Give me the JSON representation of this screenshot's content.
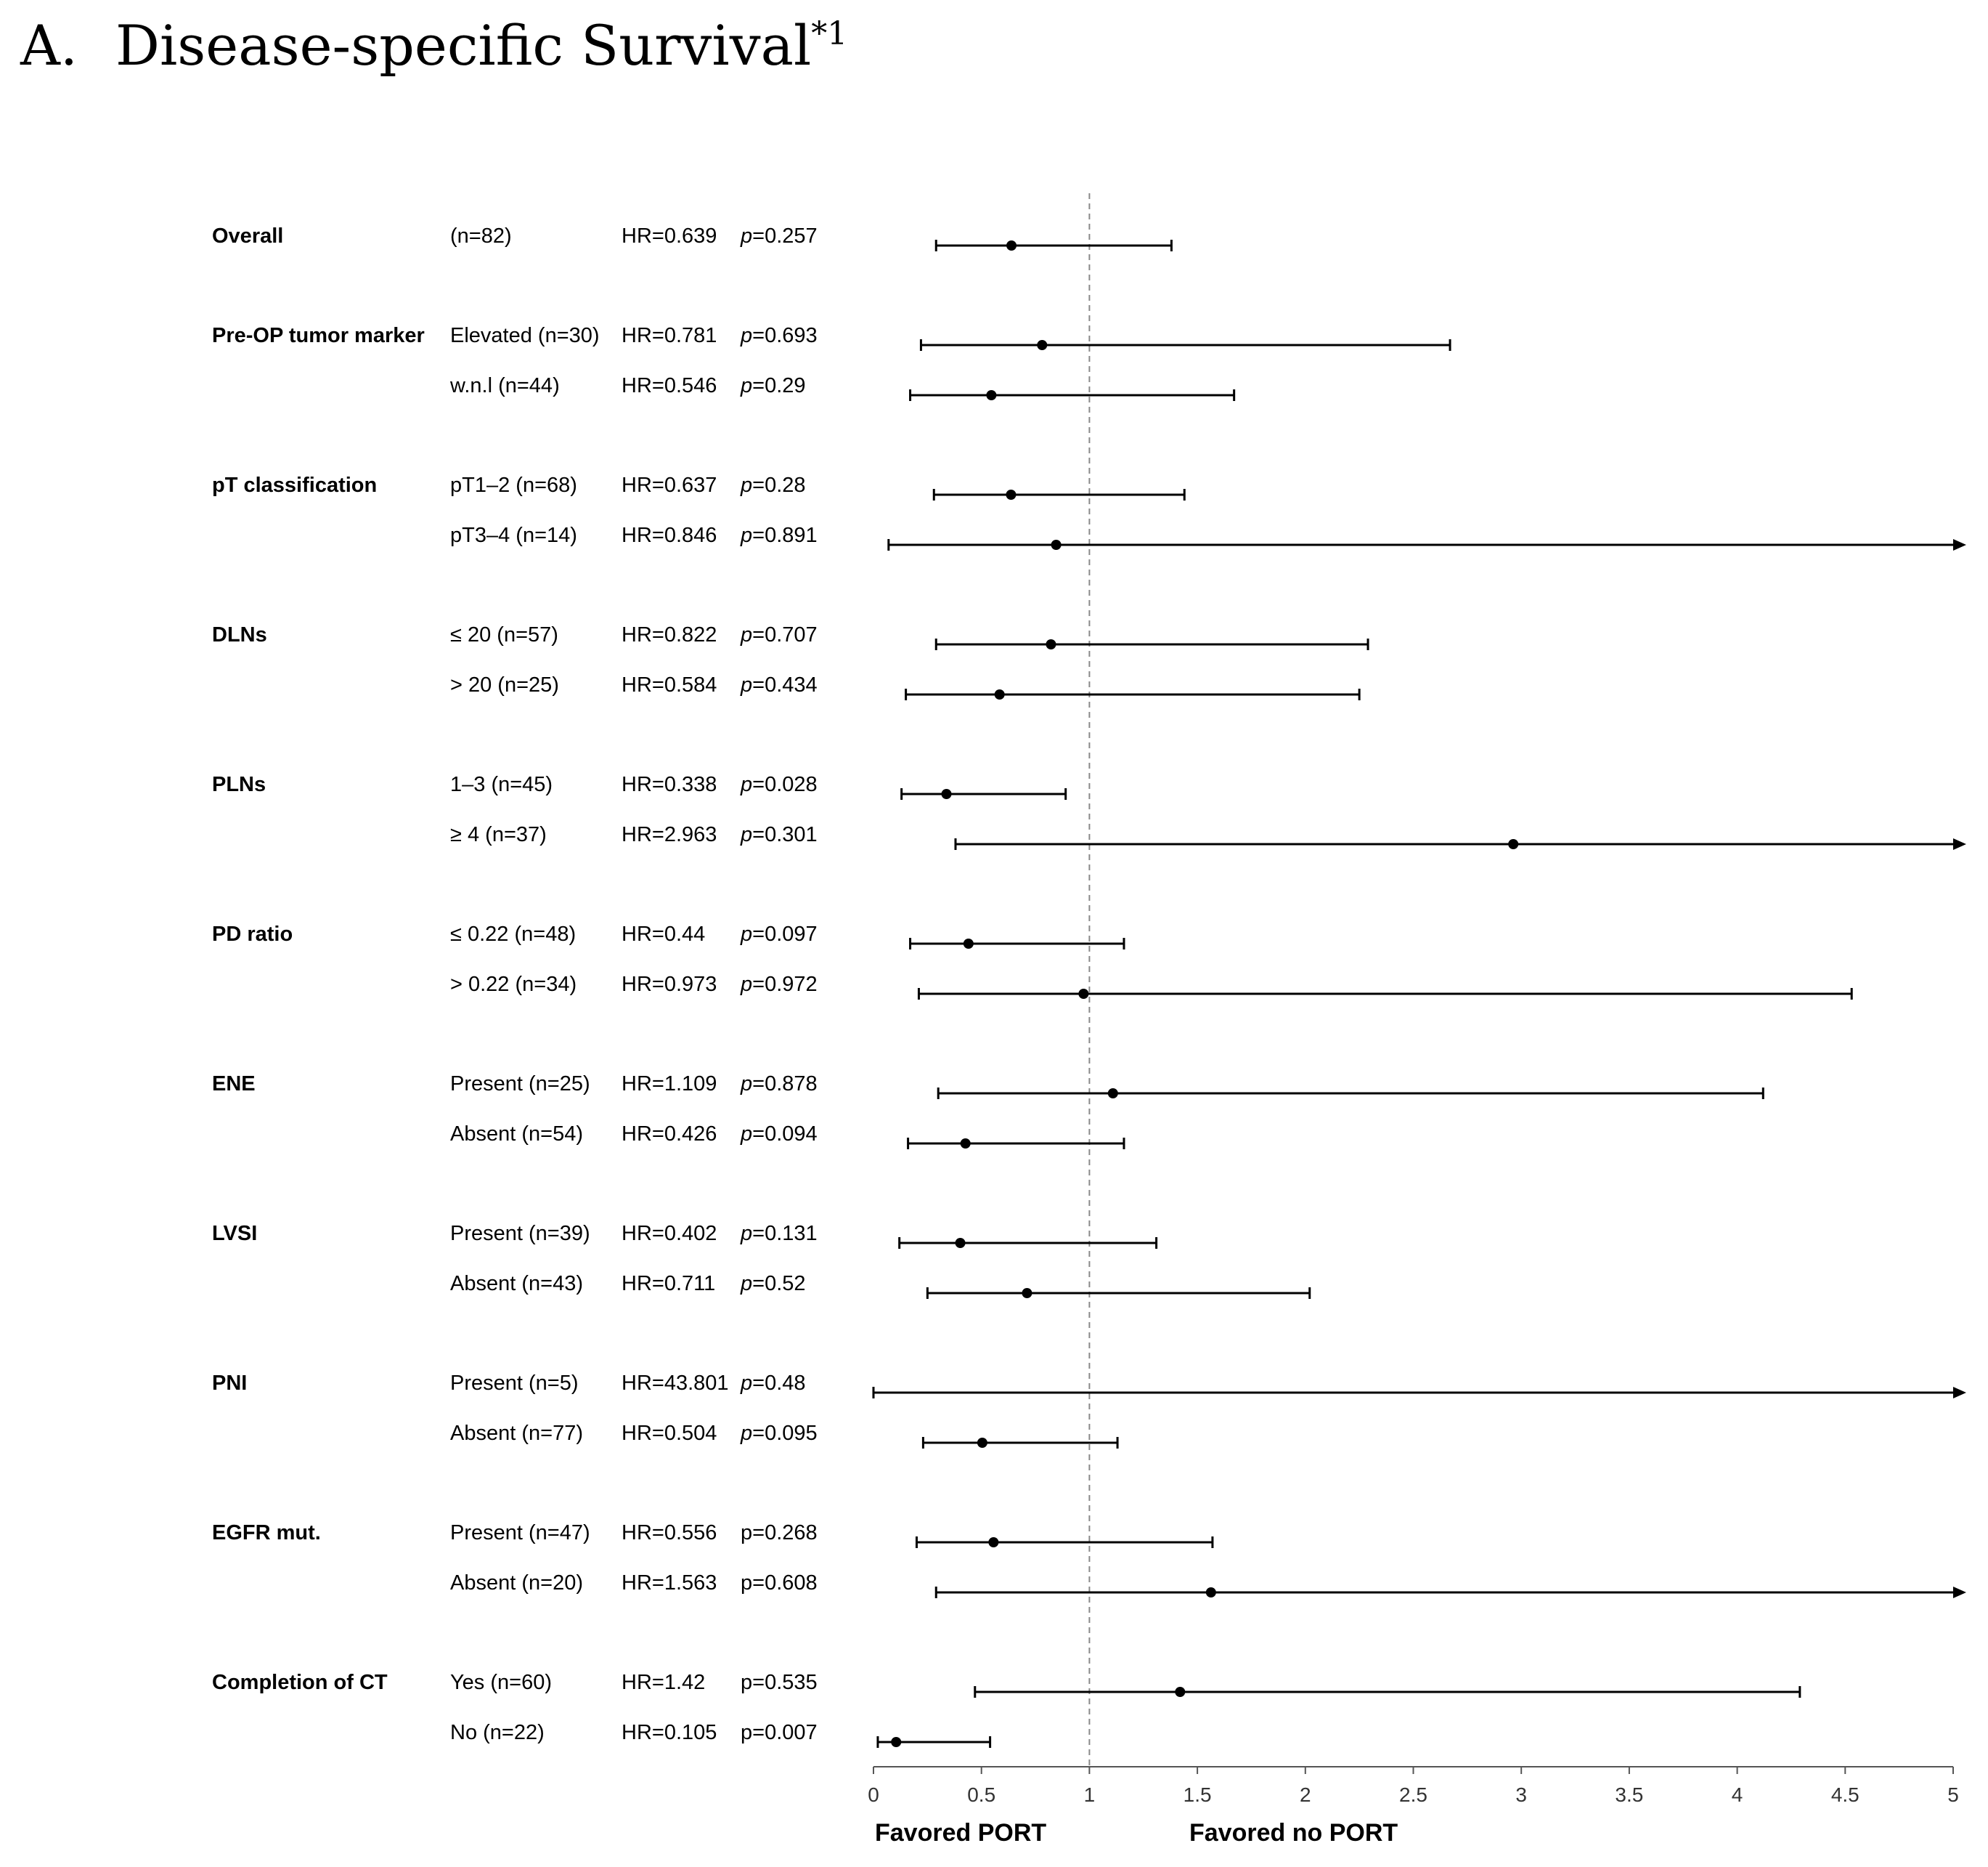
{
  "title": {
    "label": "A.",
    "text": "Disease-specific Survival",
    "superscript": "*1"
  },
  "chart_data": {
    "type": "forest",
    "xlim": [
      0,
      5
    ],
    "xticks": [
      0,
      0.5,
      1,
      1.5,
      2,
      2.5,
      3,
      3.5,
      4,
      4.5,
      5
    ],
    "tick_labels": [
      "0",
      "0.5",
      "1",
      "1.5",
      "2",
      "2.5",
      "3",
      "3.5",
      "4",
      "4.5",
      "5"
    ],
    "reference_line": 1,
    "xlabel_left": "Favored  PORT",
    "xlabel_right": "Favored no PORT",
    "groups": [
      {
        "name": "Overall",
        "rows": [
          {
            "subgroup": "(n=82)",
            "hr_text": "HR=0.639",
            "p_prefix": "p",
            "p_text": "=0.257",
            "p_italic": true,
            "hr": 0.639,
            "lo": 0.29,
            "hi": 1.38,
            "arrow": false
          }
        ]
      },
      {
        "name": "Pre-OP tumor marker",
        "rows": [
          {
            "subgroup": "Elevated (n=30)",
            "hr_text": "HR=0.781",
            "p_prefix": "p",
            "p_text": "=0.693",
            "p_italic": true,
            "hr": 0.781,
            "lo": 0.22,
            "hi": 2.67,
            "arrow": false
          },
          {
            "subgroup": "w.n.l (n=44)",
            "hr_text": "HR=0.546",
            "p_prefix": "p",
            "p_text": "=0.29",
            "p_italic": true,
            "hr": 0.546,
            "lo": 0.17,
            "hi": 1.67,
            "arrow": false
          }
        ]
      },
      {
        "name": "pT classification",
        "rows": [
          {
            "subgroup": "pT1–2 (n=68)",
            "hr_text": "HR=0.637",
            "p_prefix": "p",
            "p_text": "=0.28",
            "p_italic": true,
            "hr": 0.637,
            "lo": 0.28,
            "hi": 1.44,
            "arrow": false
          },
          {
            "subgroup": "pT3–4 (n=14)",
            "hr_text": "HR=0.846",
            "p_prefix": "p",
            "p_text": "=0.891",
            "p_italic": true,
            "hr": 0.846,
            "lo": 0.07,
            "hi": 5,
            "arrow": true
          }
        ]
      },
      {
        "name": "DLNs",
        "rows": [
          {
            "subgroup": "≤ 20 (n=57)",
            "hr_text": "HR=0.822",
            "p_prefix": "p",
            "p_text": "=0.707",
            "p_italic": true,
            "hr": 0.822,
            "lo": 0.29,
            "hi": 2.29,
            "arrow": false
          },
          {
            "subgroup": "> 20 (n=25)",
            "hr_text": "HR=0.584",
            "p_prefix": "p",
            "p_text": "=0.434",
            "p_italic": true,
            "hr": 0.584,
            "lo": 0.15,
            "hi": 2.25,
            "arrow": false
          }
        ]
      },
      {
        "name": "PLNs",
        "rows": [
          {
            "subgroup": "1–3 (n=45)",
            "hr_text": "HR=0.338",
            "p_prefix": "p",
            "p_text": "=0.028",
            "p_italic": true,
            "hr": 0.338,
            "lo": 0.13,
            "hi": 0.89,
            "arrow": false
          },
          {
            "subgroup": "≥ 4 (n=37)",
            "hr_text": "HR=2.963",
            "p_prefix": "p",
            "p_text": "=0.301",
            "p_italic": true,
            "hr": 2.963,
            "lo": 0.38,
            "hi": 5,
            "arrow": true
          }
        ]
      },
      {
        "name": "PD ratio",
        "rows": [
          {
            "subgroup": "≤ 0.22 (n=48)",
            "hr_text": "HR=0.44",
            "p_prefix": "p",
            "p_text": "=0.097",
            "p_italic": true,
            "hr": 0.44,
            "lo": 0.17,
            "hi": 1.16,
            "arrow": false
          },
          {
            "subgroup": "> 0.22 (n=34)",
            "hr_text": "HR=0.973",
            "p_prefix": "p",
            "p_text": "=0.972",
            "p_italic": true,
            "hr": 0.973,
            "lo": 0.21,
            "hi": 4.53,
            "arrow": false
          }
        ]
      },
      {
        "name": "ENE",
        "rows": [
          {
            "subgroup": "Present (n=25)",
            "hr_text": "HR=1.109",
            "p_prefix": "p",
            "p_text": "=0.878",
            "p_italic": true,
            "hr": 1.109,
            "lo": 0.3,
            "hi": 4.12,
            "arrow": false
          },
          {
            "subgroup": "Absent (n=54)",
            "hr_text": "HR=0.426",
            "p_prefix": "p",
            "p_text": "=0.094",
            "p_italic": true,
            "hr": 0.426,
            "lo": 0.16,
            "hi": 1.16,
            "arrow": false
          }
        ]
      },
      {
        "name": "LVSI",
        "rows": [
          {
            "subgroup": "Present (n=39)",
            "hr_text": "HR=0.402",
            "p_prefix": "p",
            "p_text": "=0.131",
            "p_italic": true,
            "hr": 0.402,
            "lo": 0.12,
            "hi": 1.31,
            "arrow": false
          },
          {
            "subgroup": "Absent (n=43)",
            "hr_text": "HR=0.711",
            "p_prefix": "p",
            "p_text": "=0.52",
            "p_italic": true,
            "hr": 0.711,
            "lo": 0.25,
            "hi": 2.02,
            "arrow": false
          }
        ]
      },
      {
        "name": "PNI",
        "rows": [
          {
            "subgroup": "Present (n=5)",
            "hr_text": "HR=43.801",
            "p_prefix": "p",
            "p_text": "=0.48",
            "p_italic": true,
            "hr": 43.801,
            "lo": 0.0,
            "hi": 5,
            "arrow": true
          },
          {
            "subgroup": "Absent (n=77)",
            "hr_text": "HR=0.504",
            "p_prefix": "p",
            "p_text": "=0.095",
            "p_italic": true,
            "hr": 0.504,
            "lo": 0.23,
            "hi": 1.13,
            "arrow": false
          }
        ]
      },
      {
        "name": "EGFR mut.",
        "rows": [
          {
            "subgroup": "Present (n=47)",
            "hr_text": "HR=0.556",
            "p_prefix": "",
            "p_text": "p=0.268",
            "p_italic": false,
            "hr": 0.556,
            "lo": 0.2,
            "hi": 1.57,
            "arrow": false
          },
          {
            "subgroup": "Absent (n=20)",
            "hr_text": "HR=1.563",
            "p_prefix": "",
            "p_text": "p=0.608",
            "p_italic": false,
            "hr": 1.563,
            "lo": 0.29,
            "hi": 5,
            "arrow": true
          }
        ]
      },
      {
        "name": "Completion of CT",
        "rows": [
          {
            "subgroup": "Yes (n=60)",
            "hr_text": "HR=1.42",
            "p_prefix": "",
            "p_text": "p=0.535",
            "p_italic": false,
            "hr": 1.42,
            "lo": 0.47,
            "hi": 4.29,
            "arrow": false
          },
          {
            "subgroup": "No (n=22)",
            "hr_text": "HR=0.105",
            "p_prefix": "",
            "p_text": "p=0.007",
            "p_italic": false,
            "hr": 0.105,
            "lo": 0.02,
            "hi": 0.54,
            "arrow": false
          }
        ]
      }
    ]
  }
}
